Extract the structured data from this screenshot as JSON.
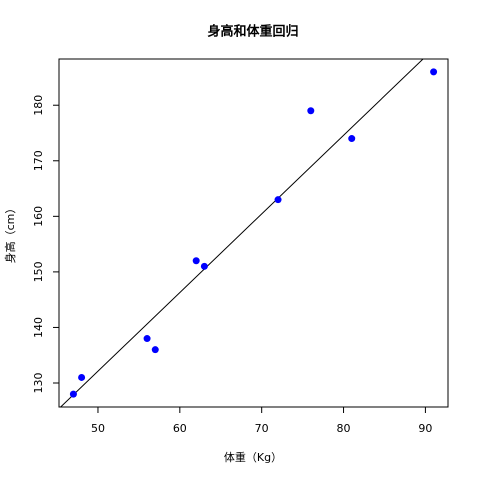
{
  "chart_data": {
    "type": "scatter",
    "title": "身高和体重回归",
    "x_label": "体重（Kg）",
    "y_label": "身高（cm）",
    "series": [
      {
        "color": "#0000ff",
        "x": [
          47,
          48,
          56,
          57,
          62,
          63,
          72,
          76,
          81,
          91
        ],
        "values": [
          128,
          131,
          138,
          136,
          152,
          151,
          163,
          179,
          174,
          186
        ]
      }
    ],
    "fit_line": {
      "intercept": 61.38,
      "slope": 1.415,
      "color": "#000000"
    },
    "xlim": [
      45.24,
      92.76
    ],
    "xticks": [
      50,
      60,
      70,
      80,
      90
    ],
    "ylim": [
      125.68,
      188.32
    ],
    "yticks": [
      130,
      140,
      150,
      160,
      170,
      180
    ]
  }
}
